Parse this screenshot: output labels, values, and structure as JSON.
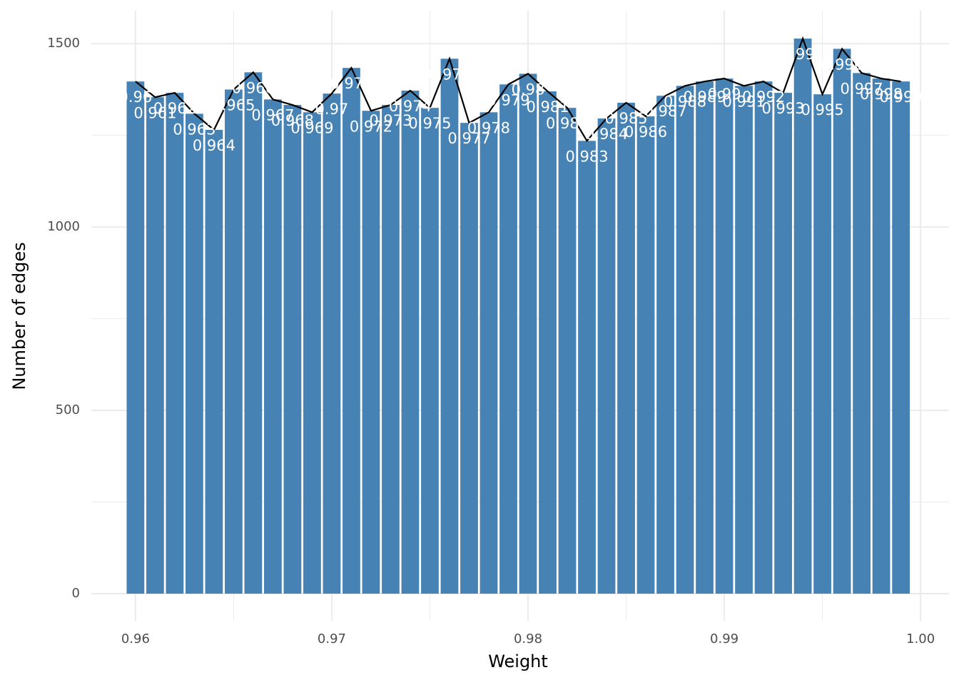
{
  "chart_data": {
    "type": "bar",
    "x_label": "Weight",
    "y_label": "Number of edges",
    "x": [
      0.96,
      0.961,
      0.962,
      0.963,
      0.964,
      0.965,
      0.966,
      0.967,
      0.968,
      0.969,
      0.97,
      0.971,
      0.972,
      0.973,
      0.974,
      0.975,
      0.976,
      0.977,
      0.978,
      0.979,
      0.98,
      0.981,
      0.982,
      0.983,
      0.984,
      0.985,
      0.986,
      0.987,
      0.988,
      0.989,
      0.99,
      0.991,
      0.992,
      0.993,
      0.994,
      0.995,
      0.996,
      0.997,
      0.998,
      0.999
    ],
    "values": [
      1397,
      1354,
      1366,
      1309,
      1265,
      1375,
      1422,
      1348,
      1333,
      1313,
      1364,
      1434,
      1317,
      1333,
      1372,
      1325,
      1459,
      1284,
      1313,
      1389,
      1418,
      1370,
      1325,
      1235,
      1296,
      1339,
      1302,
      1358,
      1385,
      1397,
      1405,
      1385,
      1397,
      1366,
      1514,
      1362,
      1486,
      1420,
      1405,
      1397
    ],
    "color": "#4682b4",
    "line_color": "#000000",
    "bar_width": 0.0009,
    "xlim": [
      0.95775,
      1.00145
    ],
    "ylim": [
      -74,
      1590
    ],
    "xticks": [
      0.96,
      0.97,
      0.98,
      0.99,
      {
        "value": 1.0,
        "label": "1.00"
      }
    ],
    "yticks": [
      0,
      500,
      1000,
      1500
    ],
    "x_minor_ticks": [
      0.965,
      0.975,
      0.985,
      0.995
    ],
    "y_minor_ticks": [
      250,
      750,
      1250
    ],
    "grid": true
  }
}
